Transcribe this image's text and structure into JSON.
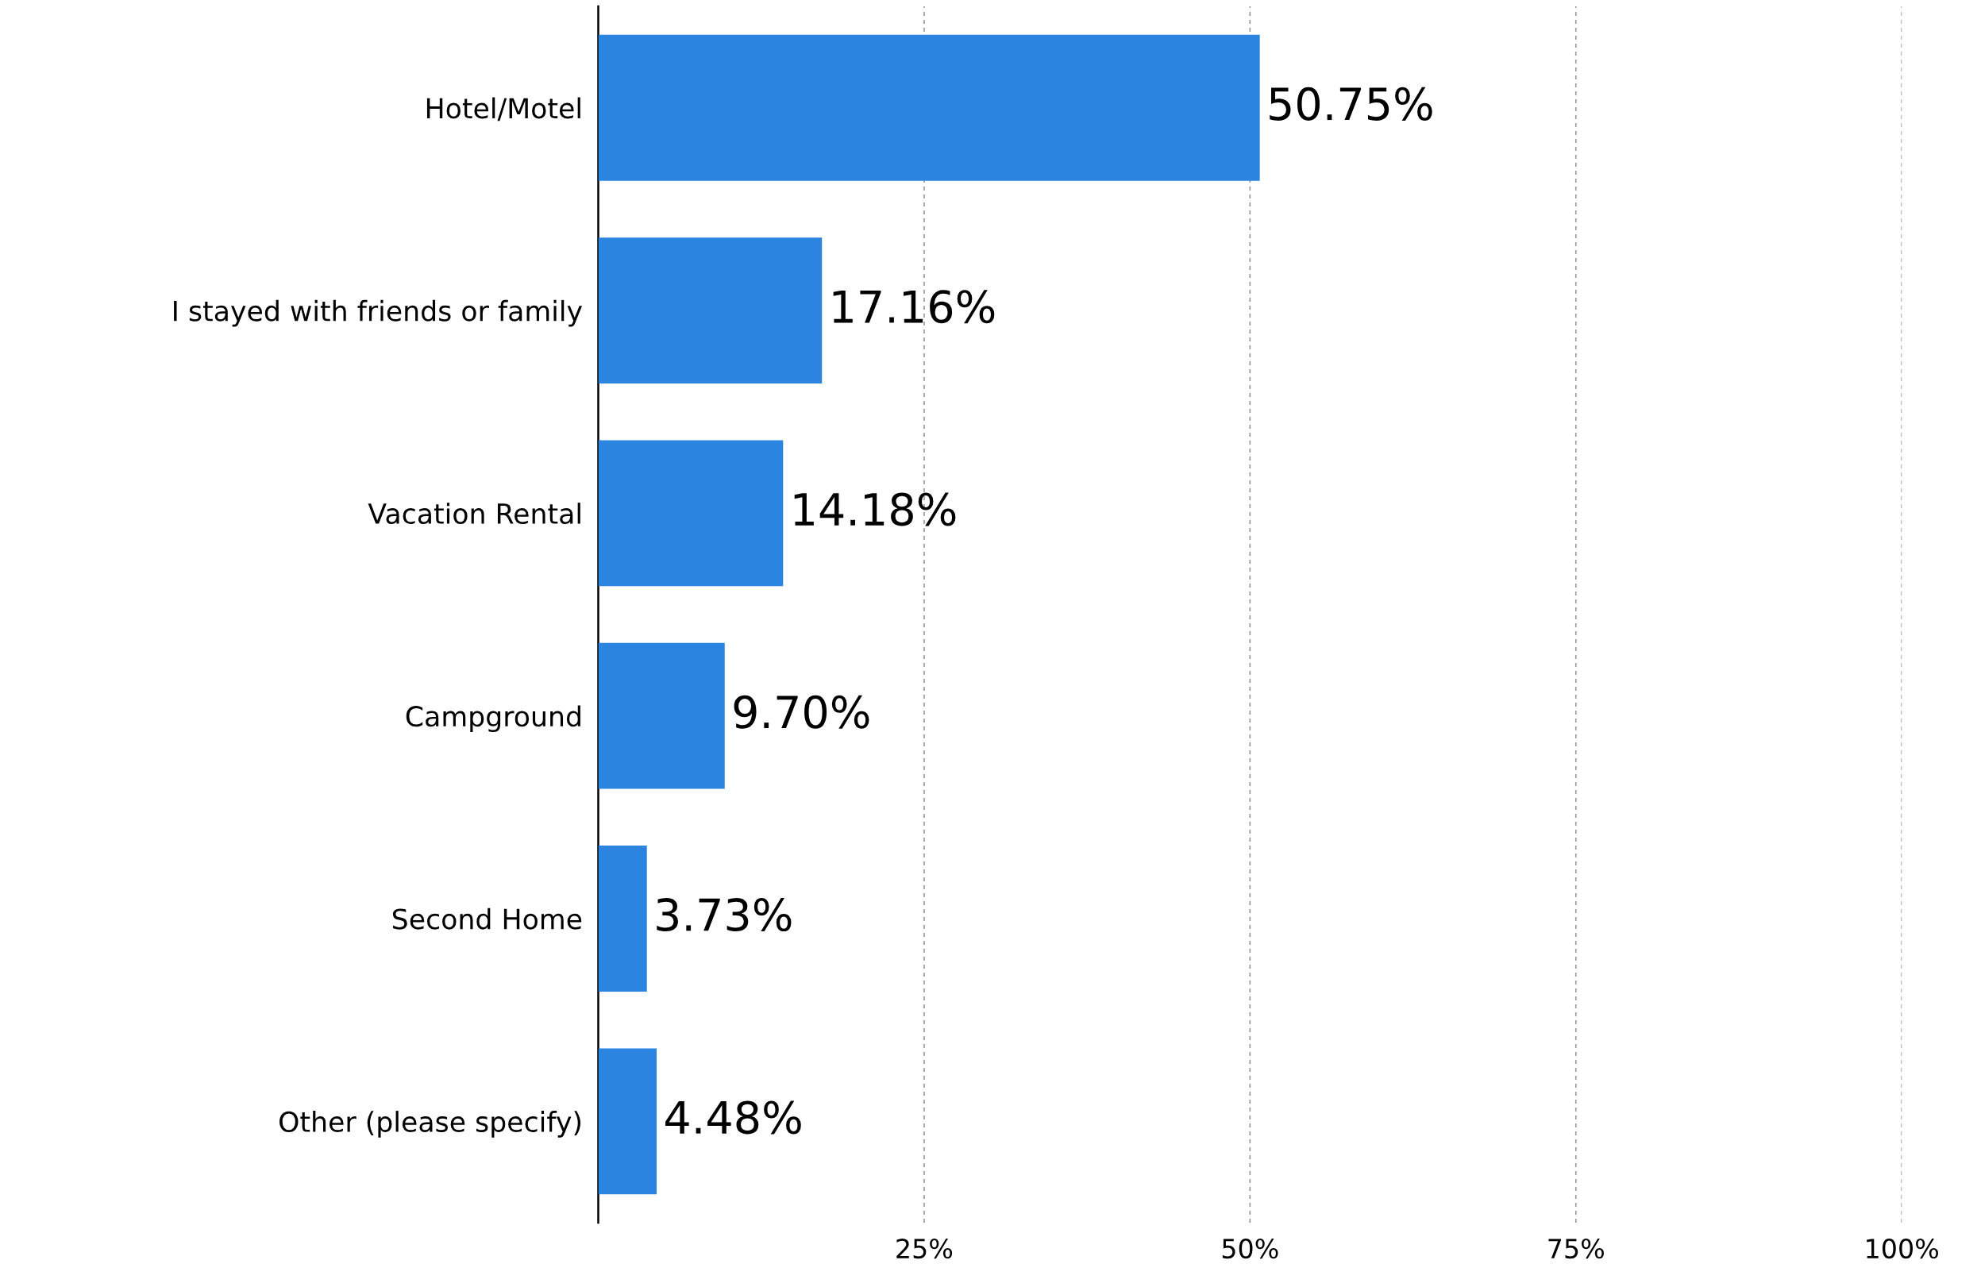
{
  "chart_data": {
    "type": "bar",
    "orientation": "horizontal",
    "categories": [
      "Hotel/Motel",
      "I stayed with friends or family",
      "Vacation Rental",
      "Campground",
      "Second Home",
      "Other (please specify)"
    ],
    "values": [
      50.75,
      17.16,
      14.18,
      9.7,
      3.73,
      4.48
    ],
    "value_labels": [
      "50.75%",
      "17.16%",
      "14.18%",
      "9.70%",
      "3.73%",
      "4.48%"
    ],
    "color": "#2a84e0",
    "xlim": [
      0,
      100
    ],
    "xticks": [
      {
        "value": 25,
        "label": "25%"
      },
      {
        "value": 50,
        "label": "50%"
      },
      {
        "value": 75,
        "label": "75%"
      },
      {
        "value": 100,
        "label": "100%"
      }
    ],
    "grid": "x",
    "line_style": "dashed",
    "legend": false
  }
}
